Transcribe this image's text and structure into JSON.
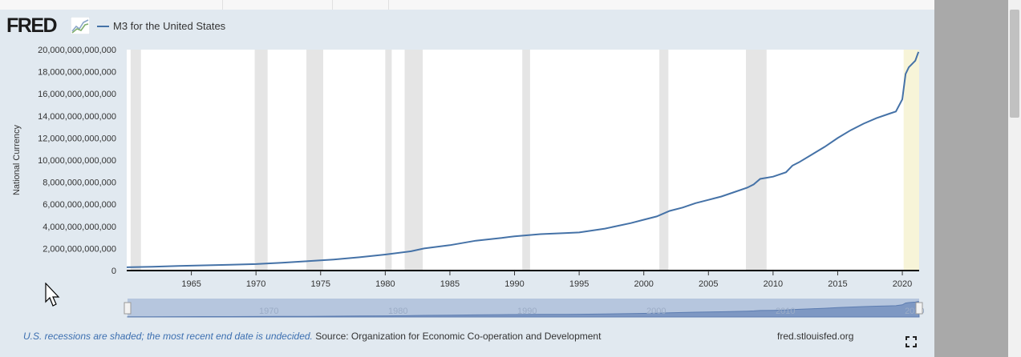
{
  "header": {
    "logo_text": "FRED",
    "legend_label": "M3 for the United States",
    "legend_color": "#4572a7"
  },
  "chart_data": {
    "type": "line",
    "title": "",
    "series_name": "M3 for the United States",
    "ylabel": "National Currency",
    "xlabel": "",
    "xlim": [
      1960,
      2021.3
    ],
    "ylim": [
      0,
      20000000000000
    ],
    "yticks": [
      {
        "value": 0,
        "label": "0"
      },
      {
        "value": 2000000000000,
        "label": "2,000,000,000,000"
      },
      {
        "value": 4000000000000,
        "label": "4,000,000,000,000"
      },
      {
        "value": 6000000000000,
        "label": "6,000,000,000,000"
      },
      {
        "value": 8000000000000,
        "label": "8,000,000,000,000"
      },
      {
        "value": 10000000000000,
        "label": "10,000,000,000,000"
      },
      {
        "value": 12000000000000,
        "label": "12,000,000,000,000"
      },
      {
        "value": 14000000000000,
        "label": "14,000,000,000,000"
      },
      {
        "value": 16000000000000,
        "label": "16,000,000,000,000"
      },
      {
        "value": 18000000000000,
        "label": "18,000,000,000,000"
      },
      {
        "value": 20000000000000,
        "label": "20,000,000,000,000"
      }
    ],
    "xticks": [
      "1965",
      "1970",
      "1975",
      "1980",
      "1985",
      "1990",
      "1995",
      "2000",
      "2005",
      "2010",
      "2015",
      "2020"
    ],
    "recessions": [
      [
        1960.3,
        1961.1
      ],
      [
        1969.9,
        1970.9
      ],
      [
        1973.9,
        1975.2
      ],
      [
        1980.0,
        1980.5
      ],
      [
        1981.5,
        1982.9
      ],
      [
        1990.6,
        1991.2
      ],
      [
        2001.2,
        2001.9
      ],
      [
        2007.9,
        2009.5
      ]
    ],
    "recession_undecided": [
      2020.1,
      2021.3
    ],
    "x": [
      1960,
      1962,
      1964,
      1966,
      1968,
      1970,
      1972,
      1974,
      1976,
      1978,
      1980,
      1982,
      1983,
      1985,
      1987,
      1989,
      1990,
      1992,
      1994,
      1995,
      1997,
      1999,
      2000,
      2001,
      2002,
      2003,
      2004,
      2005,
      2006,
      2007,
      2008,
      2008.5,
      2009,
      2010,
      2011,
      2011.5,
      2012,
      2013,
      2014,
      2015,
      2016,
      2017,
      2018,
      2019,
      2019.5,
      2020,
      2020.25,
      2020.5,
      2021,
      2021.25
    ],
    "values": [
      300000000000,
      350000000000,
      410000000000,
      470000000000,
      530000000000,
      590000000000,
      700000000000,
      850000000000,
      1000000000000,
      1200000000000,
      1450000000000,
      1750000000000,
      2000000000000,
      2300000000000,
      2700000000000,
      2950000000000,
      3100000000000,
      3300000000000,
      3400000000000,
      3450000000000,
      3800000000000,
      4300000000000,
      4600000000000,
      4900000000000,
      5400000000000,
      5700000000000,
      6100000000000,
      6400000000000,
      6700000000000,
      7100000000000,
      7500000000000,
      7800000000000,
      8300000000000,
      8500000000000,
      8900000000000,
      9500000000000,
      9800000000000,
      10500000000000,
      11200000000000,
      12000000000000,
      12700000000000,
      13300000000000,
      13800000000000,
      14200000000000,
      14400000000000,
      15500000000000,
      17800000000000,
      18400000000000,
      19000000000000,
      19800000000000
    ],
    "navigator_labels": [
      "1970",
      "1980",
      "1990",
      "2000",
      "2010",
      "2020"
    ]
  },
  "footer": {
    "recession_note": "U.S. recessions are shaded; the most recent end date is undecided.",
    "source": "Source: Organization for Economic Co-operation and Development",
    "site": "fred.stlouisfed.org"
  }
}
